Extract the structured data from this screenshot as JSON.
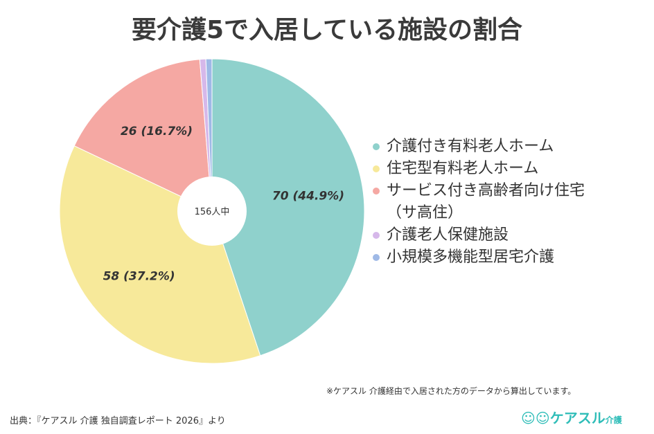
{
  "chart_data": {
    "type": "pie",
    "title": "要介護5で入居している施設の割合",
    "center_label": "156人中",
    "total": 156,
    "slices": [
      {
        "name": "介護付き有料老人ホーム",
        "value": 70,
        "label": "70 (44.9%)",
        "color": "#8fd1cc"
      },
      {
        "name": "住宅型有料老人ホーム",
        "value": 58,
        "label": "58 (37.2%)",
        "color": "#f7e99a"
      },
      {
        "name": "サービス付き高齢者向け住宅（サ高住）",
        "value": 26,
        "label": "26 (16.7%)",
        "color": "#f5a8a3"
      },
      {
        "name": "介護老人保健施設",
        "value": 1,
        "label": "",
        "color": "#d6b8ea"
      },
      {
        "name": "小規模多機能型居宅介護",
        "value": 1,
        "label": "",
        "color": "#9fb9e6"
      }
    ],
    "legend_position": "right"
  },
  "legend": [
    "介護付き有料老人ホーム",
    "住宅型有料老人ホーム",
    "サービス付き高齢者向け住宅",
    "（サ高住）",
    "介護老人保健施設",
    "小規模多機能型居宅介護"
  ],
  "note": "※ケアスル 介護経由で入居された方のデータから算出しています。",
  "source": "出典：『ケアスル 介護 独自調査レポート 2026』より",
  "logo": {
    "name": "ケアスル",
    "sub": "介護"
  }
}
